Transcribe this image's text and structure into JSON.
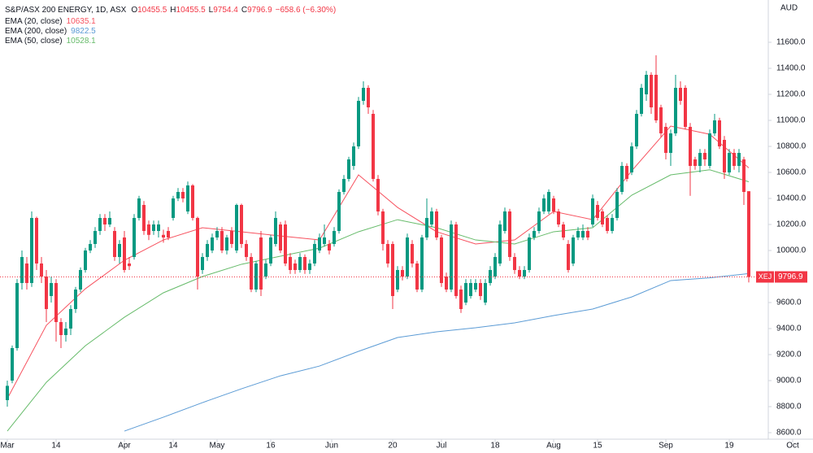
{
  "chart_data": {
    "type": "candlestick",
    "title": "S&P/ASX 200 ENERGY, 1D, ASX",
    "ohlc_labels": [
      "O",
      "H",
      "L",
      "C"
    ],
    "change_label": "−658.6 (−6.30%)",
    "y_axis_label": "AUD",
    "symbol": "XEJ",
    "up_color": "#089981",
    "down_color": "#f23645",
    "grid": false,
    "xlim": [
      -1.5,
      165.17
    ],
    "ylim": [
      8550,
      11925
    ],
    "xticks": [
      {
        "value": 0,
        "label": "Mar"
      },
      {
        "value": 10,
        "label": "14"
      },
      {
        "value": 24,
        "label": "Apr"
      },
      {
        "value": 34,
        "label": "14"
      },
      {
        "value": 43,
        "label": "May"
      },
      {
        "value": 54,
        "label": "16"
      },
      {
        "value": 66.5,
        "label": "Jun"
      },
      {
        "value": 79,
        "label": "20"
      },
      {
        "value": 89,
        "label": "Jul"
      },
      {
        "value": 100,
        "label": "18"
      },
      {
        "value": 112,
        "label": "Aug"
      },
      {
        "value": 121,
        "label": "15"
      },
      {
        "value": 135,
        "label": "Sep"
      },
      {
        "value": 148,
        "label": "19"
      },
      {
        "value": 161,
        "label": "Oct"
      }
    ],
    "yticks": [
      {
        "value": 8600,
        "label": "8600.0"
      },
      {
        "value": 8800,
        "label": "8800.0"
      },
      {
        "value": 9000,
        "label": "9000.0"
      },
      {
        "value": 9200,
        "label": "9200.0"
      },
      {
        "value": 9400,
        "label": "9400.0"
      },
      {
        "value": 9600,
        "label": "9600.0"
      },
      {
        "value": 9800,
        "label": "9800.0"
      },
      {
        "value": 10000,
        "label": "10000.0"
      },
      {
        "value": 10200,
        "label": "10200.0"
      },
      {
        "value": 10400,
        "label": "10400.0"
      },
      {
        "value": 10600,
        "label": "10600.0"
      },
      {
        "value": 10800,
        "label": "10800.0"
      },
      {
        "value": 11000,
        "label": "11000.0"
      },
      {
        "value": 11200,
        "label": "11200.0"
      },
      {
        "value": 11400,
        "label": "11400.0"
      },
      {
        "value": 11600,
        "label": "11600.0"
      }
    ],
    "open": [
      8850,
      9000,
      9250,
      9750,
      9900,
      9750,
      10250,
      9900,
      9800,
      9650,
      9750,
      9450,
      9350,
      9400,
      9550,
      9700,
      9850,
      10000,
      10050,
      10150,
      10250,
      10200,
      10150,
      9950,
      10100,
      9900,
      9950,
      10250,
      10350,
      10200,
      10150,
      10150,
      10120,
      10150,
      10250,
      10400,
      10450,
      10300,
      10500,
      10250,
      9850,
      9950,
      10000,
      10100,
      10150,
      10000,
      10150,
      10000,
      10350,
      10050,
      9950,
      9700,
      10100,
      9800,
      9900,
      10050,
      10200,
      10200,
      9950,
      9900,
      9850,
      9950,
      9850,
      9900,
      10000,
      10050,
      10050,
      10050,
      10150,
      10450,
      10550,
      10650,
      10800,
      11150,
      11250,
      11050,
      10550,
      10300,
      10050,
      10050,
      9700,
      9850,
      9800,
      10050,
      9900,
      9700,
      10100,
      10200,
      10300,
      10100,
      9800,
      9700,
      10200,
      9700,
      9600,
      9650,
      9700,
      9750,
      9600,
      9750,
      9800,
      9900,
      10150,
      10300,
      9950,
      9850,
      9800,
      9850,
      10100,
      10150,
      10300,
      10300,
      10400,
      10300,
      10200,
      10050,
      9900,
      10100,
      10100,
      10150,
      10200,
      10350,
      10300,
      10250,
      10150,
      10250,
      10450,
      10650,
      10600,
      10800,
      11050,
      11200,
      11350,
      11350,
      11100,
      10950,
      10750,
      10900,
      11250,
      11250,
      10950,
      10700,
      10650,
      10750,
      10650,
      10900,
      11000,
      10850,
      10600,
      10750,
      10650,
      10700,
      10455.5
    ],
    "high": [
      9000,
      9270,
      9780,
      10000,
      9950,
      10300,
      10260,
      9950,
      9850,
      9800,
      9780,
      9480,
      9450,
      9580,
      9720,
      9870,
      10020,
      10080,
      10180,
      10280,
      10280,
      10300,
      10180,
      10080,
      10150,
      9950,
      10280,
      10420,
      10380,
      10230,
      10230,
      10230,
      10160,
      10180,
      10420,
      10480,
      10480,
      10530,
      10510,
      10260,
      9980,
      10080,
      10130,
      10180,
      10180,
      10120,
      10180,
      10360,
      10360,
      10080,
      9980,
      9920,
      10150,
      9930,
      10120,
      10300,
      10220,
      10230,
      9980,
      9930,
      9980,
      9970,
      9930,
      10080,
      10130,
      10200,
      10080,
      10180,
      10470,
      10580,
      10720,
      10830,
      11180,
      11300,
      11270,
      11080,
      10580,
      10320,
      10080,
      10070,
      9880,
      9880,
      10130,
      10080,
      9920,
      10120,
      10400,
      10330,
      10320,
      10120,
      9830,
      10230,
      10220,
      9730,
      9780,
      9780,
      9780,
      9780,
      9780,
      9880,
      9980,
      10230,
      10330,
      10320,
      9980,
      9880,
      9880,
      10130,
      10180,
      10330,
      10430,
      10470,
      10420,
      10320,
      10220,
      10080,
      10120,
      10180,
      10200,
      10180,
      10430,
      10380,
      10320,
      10270,
      10280,
      10480,
      10680,
      10670,
      10830,
      11080,
      11280,
      11380,
      11370,
      11500,
      11120,
      10980,
      10930,
      11350,
      11300,
      11270,
      10980,
      10720,
      10780,
      10780,
      10930,
      11050,
      11020,
      10880,
      10780,
      10780,
      10780,
      10720,
      10455.5
    ],
    "low": [
      8800,
      8980,
      9230,
      9700,
      9700,
      9720,
      9850,
      9750,
      9450,
      9600,
      9300,
      9250,
      9300,
      9350,
      9520,
      9680,
      9830,
      9980,
      10020,
      10120,
      10150,
      10180,
      9920,
      9900,
      9830,
      9850,
      9930,
      10230,
      10120,
      10080,
      10120,
      10100,
      10060,
      10080,
      10230,
      10380,
      10370,
      10280,
      10230,
      9700,
      9820,
      9920,
      9980,
      10080,
      9980,
      9970,
      10020,
      9980,
      10020,
      9920,
      9680,
      9680,
      9650,
      9780,
      9880,
      10030,
      9980,
      9880,
      9820,
      9820,
      9830,
      9820,
      9820,
      9880,
      9980,
      10030,
      9970,
      10030,
      10130,
      10430,
      10530,
      10620,
      10780,
      11120,
      11050,
      10530,
      10270,
      10000,
      9870,
      9550,
      9680,
      9770,
      9780,
      9870,
      9680,
      9680,
      10080,
      10180,
      10080,
      9720,
      9680,
      9680,
      9630,
      9520,
      9580,
      9630,
      9680,
      9620,
      9580,
      9730,
      9780,
      9880,
      10130,
      9920,
      9820,
      9780,
      9780,
      9830,
      10080,
      10130,
      10280,
      10280,
      10280,
      10180,
      10080,
      9830,
      9880,
      10080,
      10080,
      10080,
      10180,
      10230,
      10180,
      10130,
      10130,
      10230,
      10430,
      10530,
      10580,
      10780,
      11030,
      11150,
      11050,
      10980,
      10870,
      10700,
      10650,
      10880,
      11120,
      10930,
      10420,
      10620,
      10600,
      10650,
      10630,
      10880,
      10780,
      10550,
      10580,
      10620,
      10600,
      10350,
      9754.4
    ],
    "close": [
      8960,
      9250,
      9750,
      9950,
      9750,
      10250,
      9900,
      9800,
      9550,
      9750,
      9450,
      9350,
      9400,
      9550,
      9700,
      9850,
      10000,
      10050,
      10150,
      10250,
      10200,
      10250,
      9950,
      10050,
      9850,
      9880,
      10250,
      10400,
      10150,
      10120,
      10200,
      10200,
      10100,
      10100,
      10400,
      10450,
      10400,
      10500,
      10250,
      9800,
      9950,
      10050,
      10100,
      10150,
      10000,
      10100,
      10050,
      10350,
      10050,
      9950,
      9700,
      9900,
      9700,
      9900,
      10100,
      10250,
      10000,
      9900,
      9850,
      9850,
      9950,
      9850,
      9900,
      10050,
      10100,
      10100,
      10000,
      10150,
      10450,
      10550,
      10700,
      10800,
      11150,
      11250,
      11100,
      10550,
      10300,
      10050,
      9900,
      9650,
      9850,
      9800,
      10100,
      9900,
      9700,
      10100,
      10250,
      10300,
      10100,
      9750,
      9700,
      10200,
      9650,
      9550,
      9750,
      9750,
      9750,
      9650,
      9750,
      9850,
      9950,
      10200,
      10300,
      9950,
      9850,
      9800,
      9850,
      10100,
      10150,
      10300,
      10400,
      10450,
      10300,
      10200,
      10100,
      9850,
      10100,
      10150,
      10150,
      10100,
      10400,
      10250,
      10200,
      10150,
      10250,
      10450,
      10650,
      10550,
      10800,
      11050,
      11250,
      11350,
      11100,
      11000,
      10900,
      10750,
      10900,
      11250,
      11150,
      10950,
      10650,
      10650,
      10750,
      10700,
      10900,
      11000,
      10800,
      10600,
      10750,
      10650,
      10750,
      10450,
      9796.9
    ],
    "series": [
      {
        "name": "EMA (20, close)",
        "color": "#f7525f",
        "x": [
          0,
          8,
          16,
          24,
          32,
          40,
          48,
          56,
          64,
          72,
          80,
          88,
          96,
          104,
          112,
          120,
          128,
          136,
          144,
          152
        ],
        "values": [
          8862,
          9425,
          9706,
          9925,
          10081,
          10175,
          10144,
          10112,
          10081,
          10581,
          10331,
          10144,
          10050,
          10081,
          10300,
          10237,
          10612,
          10956,
          10893,
          10635.1
        ]
      },
      {
        "name": "EMA (200, close)",
        "color": "#5b9bd5",
        "x": [
          24,
          32,
          40,
          48,
          56,
          64,
          72,
          80,
          88,
          96,
          104,
          112,
          120,
          128,
          136,
          144,
          152
        ],
        "values": [
          8612,
          8719,
          8831,
          8937,
          9037,
          9112,
          9225,
          9331,
          9375,
          9406,
          9444,
          9500,
          9550,
          9643,
          9769,
          9790,
          9822.5
        ]
      },
      {
        "name": "EMA (50, close)",
        "color": "#66bb6a",
        "x": [
          0,
          8,
          16,
          24,
          32,
          40,
          48,
          56,
          64,
          72,
          80,
          88,
          96,
          104,
          112,
          120,
          128,
          136,
          144,
          152
        ],
        "values": [
          8612,
          8987,
          9268,
          9487,
          9675,
          9800,
          9894,
          9956,
          10018,
          10144,
          10237,
          10175,
          10081,
          10050,
          10144,
          10175,
          10425,
          10581,
          10620,
          10528.1
        ]
      }
    ]
  }
}
